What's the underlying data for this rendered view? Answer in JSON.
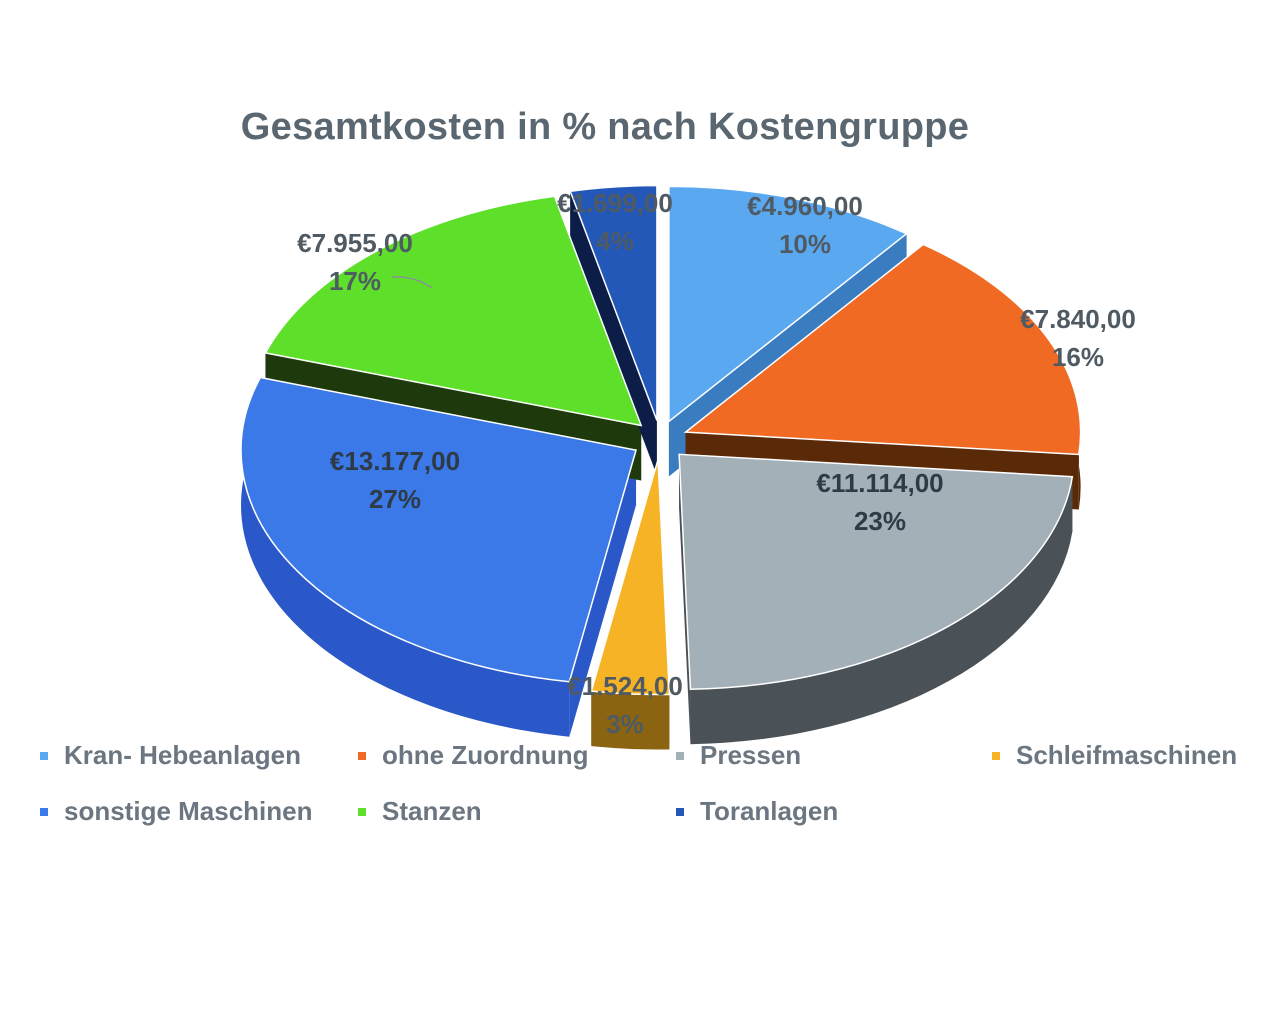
{
  "chart_data": {
    "type": "pie",
    "title": "Gesamtkosten in % nach Kostengruppe",
    "slices": [
      {
        "name": "Kran- Hebeanlagen",
        "value": 4960.0,
        "value_label": "€4.960,00",
        "percent_label": "10%",
        "color": "#5aa9f0",
        "side_color": "#3a7cc0"
      },
      {
        "name": "ohne Zuordnung",
        "value": 7840.0,
        "value_label": "€7.840,00",
        "percent_label": "16%",
        "color": "#f06a24",
        "side_color": "#5a2a08"
      },
      {
        "name": "Pressen",
        "value": 11114.0,
        "value_label": "€11.114,00",
        "percent_label": "23%",
        "color": "#a4b0b8",
        "side_color": "#4a5258"
      },
      {
        "name": "Schleifmaschinen",
        "value": 1524.0,
        "value_label": "€1.524,00",
        "percent_label": "3%",
        "color": "#f5b325",
        "side_color": "#8a6410"
      },
      {
        "name": "sonstige Maschinen",
        "value": 13177.0,
        "value_label": "€13.177,00",
        "percent_label": "27%",
        "color": "#3b78e8",
        "side_color": "#2a58c8"
      },
      {
        "name": "Stanzen",
        "value": 7955.0,
        "value_label": "€7.955,00",
        "percent_label": "17%",
        "color": "#5ee02a",
        "side_color": "#1e3a0c"
      },
      {
        "name": "Toranlagen",
        "value": 1699.0,
        "value_label": "€1.699,00",
        "percent_label": "4%",
        "color": "#2458b8",
        "side_color": "#0c1e48"
      }
    ],
    "legend_position": "bottom",
    "legend_rows": [
      [
        "Kran- Hebeanlagen",
        "ohne Zuordnung",
        "Pressen",
        "Schleifmaschinen"
      ],
      [
        "sonstige Maschinen",
        "Stanzen",
        "Toranlagen"
      ]
    ]
  }
}
